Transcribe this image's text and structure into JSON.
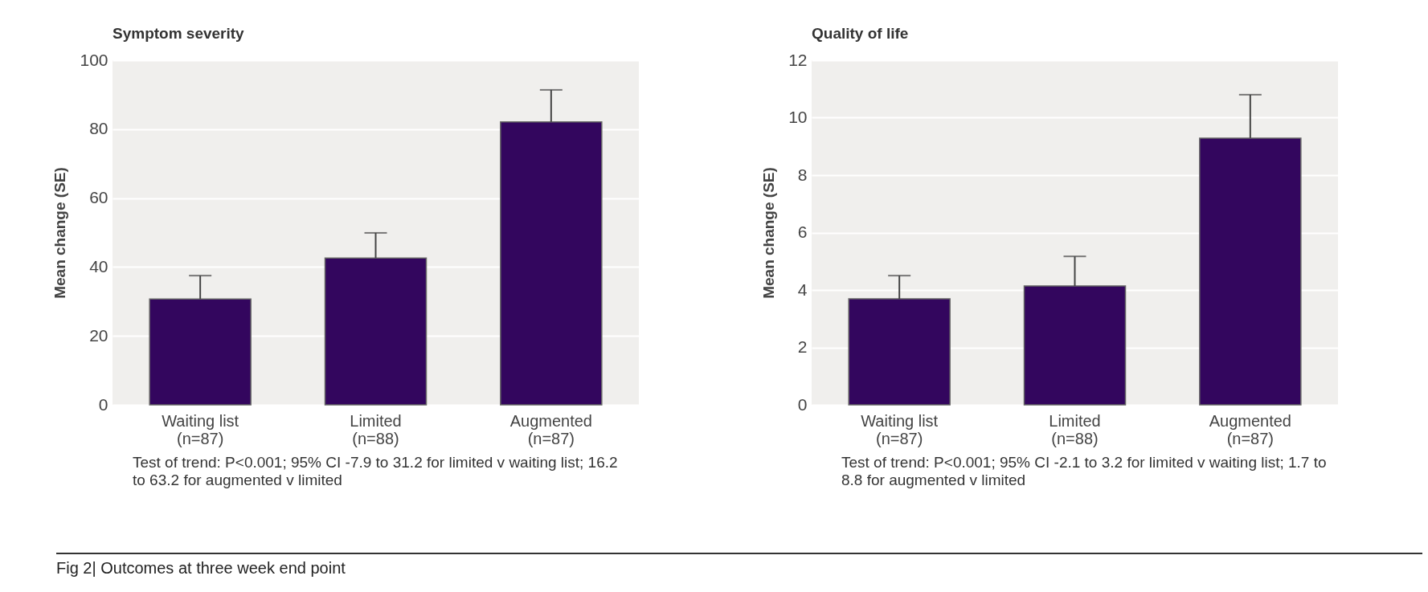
{
  "chart_data": [
    {
      "type": "bar",
      "title": "Symptom severity",
      "ylabel": "Mean change (SE)",
      "categories": [
        "Waiting list\n(n=87)",
        "Limited\n(n=88)",
        "Augmented\n(n=87)"
      ],
      "values": [
        30.7,
        42.6,
        82.1
      ],
      "errors": [
        [
          30.7,
          37.5
        ],
        [
          42.6,
          49.9
        ],
        [
          82.1,
          91.4
        ]
      ],
      "color": "#33065e",
      "ylim": [
        0,
        100
      ],
      "yticks": [
        0,
        20,
        40,
        60,
        80,
        100
      ],
      "grid": "y",
      "annotations": [
        "Test of trend: P<0.001; 95% CI -7.9 to 31.2 for limited v waiting list; 16.2 to 63.2 for augmented v limited"
      ]
    },
    {
      "type": "bar",
      "title": "Quality of life",
      "ylabel": "Mean change (SE)",
      "categories": [
        "Waiting list\n(n=87)",
        "Limited\n(n=88)",
        "Augmented\n(n=87)"
      ],
      "values": [
        3.69,
        4.14,
        9.29
      ],
      "errors": [
        [
          3.69,
          4.5
        ],
        [
          4.14,
          5.17
        ],
        [
          9.29,
          10.8
        ]
      ],
      "color": "#33065e",
      "ylim": [
        0,
        12
      ],
      "yticks": [
        0,
        2,
        4,
        6,
        8,
        10,
        12
      ],
      "grid": "y",
      "annotations": [
        "Test of trend: P<0.001; 95% CI -2.1 to 3.2 for limited v waiting list; 1.7 to 8.8 for augmented v limited",
        "Fig 2| Outcomes at three week end point"
      ]
    }
  ]
}
